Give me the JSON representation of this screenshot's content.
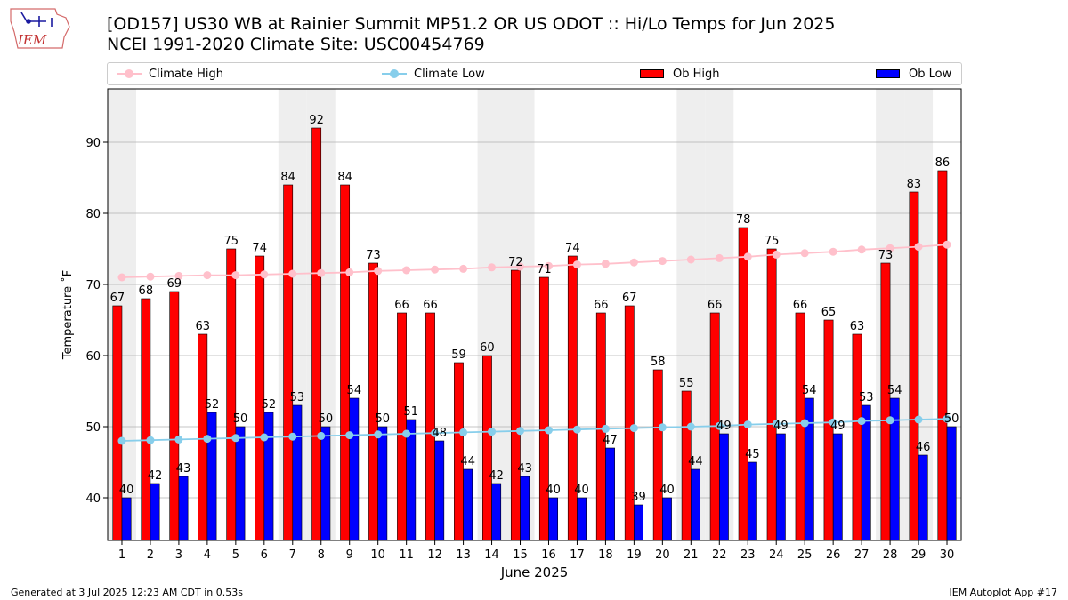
{
  "header": {
    "title_line1": "[OD157] US30 WB at Rainier Summit MP51.2 OR US ODOT :: Hi/Lo Temps for Jun 2025",
    "title_line2": "NCEI 1991-2020 Climate Site: USC00454769",
    "logo_text": "IEM"
  },
  "legend": {
    "climate_high": "Climate High",
    "climate_low": "Climate Low",
    "ob_high": "Ob High",
    "ob_low": "Ob Low"
  },
  "footer": {
    "generated": "Generated at 3 Jul 2025 12:23 AM CDT in 0.53s",
    "app": "IEM Autoplot App #17"
  },
  "colors": {
    "climate_high": "#ffc0cb",
    "climate_low": "#87ceeb",
    "ob_high": "#ff0000",
    "ob_low": "#0000ff",
    "weekend_shade": "#eeeeee",
    "grid": "#b0b0b0"
  },
  "chart_data": {
    "type": "bar",
    "xlabel": "June 2025",
    "ylabel": "Temperature ˚F",
    "ylim": [
      34,
      97.5
    ],
    "yticks": [
      40,
      50,
      60,
      70,
      80,
      90
    ],
    "grid": "horizontal",
    "legend_position": "top",
    "categories": [
      "1",
      "2",
      "3",
      "4",
      "5",
      "6",
      "7",
      "8",
      "9",
      "10",
      "11",
      "12",
      "13",
      "14",
      "15",
      "16",
      "17",
      "18",
      "19",
      "20",
      "21",
      "22",
      "23",
      "24",
      "25",
      "26",
      "27",
      "28",
      "29",
      "30"
    ],
    "shaded_days": [
      1,
      7,
      8,
      14,
      15,
      21,
      22,
      28,
      29
    ],
    "series": [
      {
        "name": "Ob High",
        "kind": "bar",
        "values": [
          67,
          68,
          69,
          63,
          75,
          74,
          84,
          92,
          84,
          73,
          66,
          66,
          59,
          60,
          72,
          71,
          74,
          66,
          67,
          58,
          55,
          66,
          78,
          75,
          66,
          65,
          63,
          73,
          83,
          86
        ]
      },
      {
        "name": "Ob Low",
        "kind": "bar",
        "values": [
          40,
          42,
          43,
          52,
          50,
          52,
          53,
          50,
          54,
          50,
          51,
          48,
          44,
          42,
          43,
          40,
          40,
          47,
          39,
          40,
          44,
          49,
          45,
          49,
          54,
          49,
          53,
          54,
          46,
          50
        ]
      },
      {
        "name": "Climate High",
        "kind": "line",
        "values": [
          71.0,
          71.1,
          71.2,
          71.3,
          71.3,
          71.4,
          71.5,
          71.6,
          71.7,
          71.9,
          72.0,
          72.1,
          72.2,
          72.4,
          72.5,
          72.6,
          72.8,
          72.9,
          73.1,
          73.3,
          73.5,
          73.7,
          73.9,
          74.2,
          74.4,
          74.6,
          74.9,
          75.1,
          75.3,
          75.6
        ]
      },
      {
        "name": "Climate Low",
        "kind": "line",
        "values": [
          48.0,
          48.1,
          48.2,
          48.3,
          48.4,
          48.5,
          48.6,
          48.7,
          48.8,
          48.9,
          49.0,
          49.1,
          49.2,
          49.3,
          49.4,
          49.5,
          49.6,
          49.7,
          49.8,
          49.9,
          50.0,
          50.1,
          50.3,
          50.4,
          50.5,
          50.6,
          50.8,
          50.9,
          51.0,
          51.1
        ]
      }
    ]
  }
}
